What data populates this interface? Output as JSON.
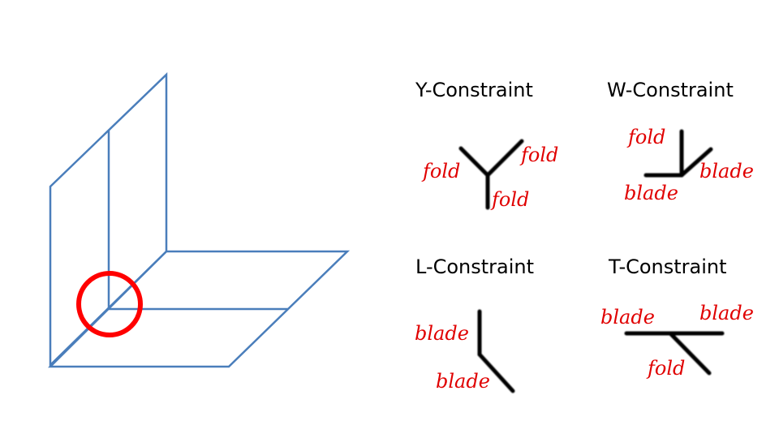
{
  "colors": {
    "fold_diagram": "#4a7ebb",
    "highlight_circle": "#ff0000",
    "constraint_lines": "#000000",
    "label_text": "#e00000",
    "title_text": "#000000"
  },
  "constraints": {
    "y": {
      "title": "Y-Constraint",
      "labels": [
        "fold",
        "fold",
        "fold"
      ]
    },
    "w": {
      "title": "W-Constraint",
      "labels": [
        "fold",
        "blade",
        "blade"
      ]
    },
    "l": {
      "title": "L-Constraint",
      "labels": [
        "blade",
        "blade"
      ]
    },
    "t": {
      "title": "T-Constraint",
      "labels": [
        "blade",
        "blade",
        "fold"
      ]
    }
  }
}
